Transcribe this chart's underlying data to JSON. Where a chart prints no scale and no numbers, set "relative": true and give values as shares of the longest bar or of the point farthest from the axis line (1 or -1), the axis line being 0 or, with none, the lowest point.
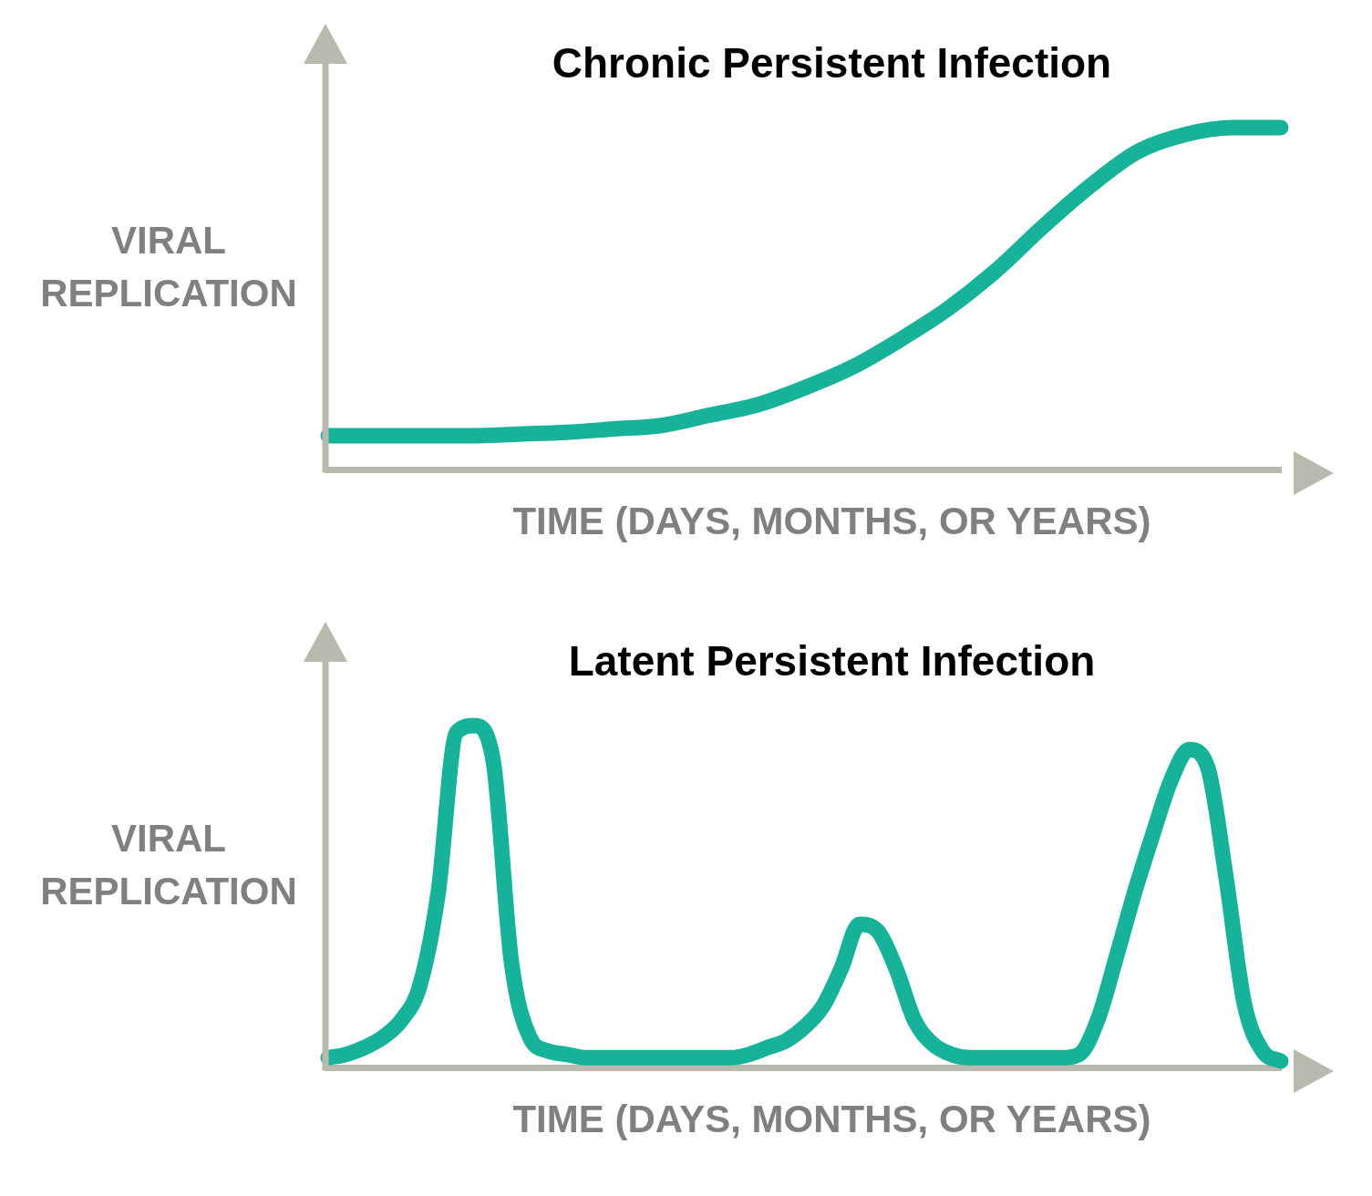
{
  "chart_data": [
    {
      "type": "line",
      "title": "Chronic Persistent Infection",
      "xlabel": "TIME (DAYS, MONTHS, OR YEARS)",
      "ylabel": "VIRAL REPLICATION",
      "relative": true,
      "grid": false,
      "marker": "none",
      "line_style": "solid",
      "categories": [
        null,
        null,
        null,
        null,
        null,
        null,
        null,
        null,
        null,
        null,
        null,
        null,
        null,
        null,
        null,
        null,
        null,
        null,
        null,
        null,
        null
      ],
      "series": [
        {
          "color": "#16b39a",
          "values": [
            0.1,
            0.1,
            0.1,
            0.1,
            0.105,
            0.11,
            0.12,
            0.13,
            0.16,
            0.19,
            0.24,
            0.3,
            0.38,
            0.47,
            0.58,
            0.71,
            0.83,
            0.93,
            0.98,
            1.0,
            1.0
          ]
        }
      ]
    },
    {
      "type": "line",
      "title": "Latent Persistent Infection",
      "xlabel": "TIME (DAYS, MONTHS, OR YEARS)",
      "ylabel": "VIRAL REPLICATION",
      "relative": true,
      "grid": false,
      "marker": "none",
      "line_style": "solid",
      "categories": [
        null,
        null,
        null,
        null,
        null,
        null,
        null,
        null,
        null,
        null,
        null,
        null,
        null,
        null,
        null,
        null,
        null,
        null,
        null,
        null,
        null,
        null,
        null,
        null,
        null,
        null,
        null,
        null,
        null,
        null,
        null,
        null,
        null,
        null,
        null,
        null,
        null,
        null,
        null,
        null,
        null,
        null,
        null,
        null,
        null,
        null,
        null,
        null,
        null,
        null,
        null,
        null,
        null
      ],
      "series": [
        {
          "color": "#16b39a",
          "values": [
            0.03,
            0.04,
            0.06,
            0.09,
            0.14,
            0.24,
            0.51,
            0.98,
            1.0,
            0.9,
            0.31,
            0.09,
            0.05,
            0.04,
            0.03,
            0.03,
            0.03,
            0.03,
            0.03,
            0.03,
            0.03,
            0.03,
            0.03,
            0.04,
            0.06,
            0.08,
            0.12,
            0.18,
            0.29,
            0.42,
            0.4,
            0.29,
            0.14,
            0.07,
            0.04,
            0.03,
            0.03,
            0.03,
            0.03,
            0.03,
            0.03,
            0.04,
            0.14,
            0.32,
            0.51,
            0.68,
            0.84,
            0.93,
            0.88,
            0.56,
            0.19,
            0.05,
            0.02
          ]
        }
      ]
    }
  ]
}
